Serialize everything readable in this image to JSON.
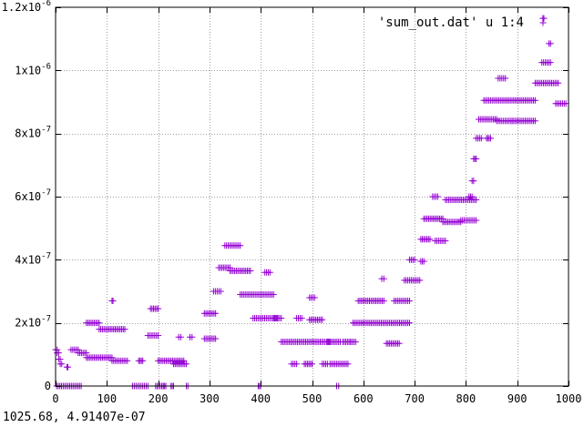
{
  "chart_data": {
    "type": "scatter",
    "legend_label": "'sum_out.dat' u 1:4",
    "legend_position": "top-right",
    "point_marker": "plus",
    "series_color": "#9400d3",
    "xlim": [
      0,
      1000
    ],
    "ylim": [
      0,
      1.2e-06
    ],
    "x_ticks": [
      {
        "value": 0,
        "label": "0"
      },
      {
        "value": 100,
        "label": "100"
      },
      {
        "value": 200,
        "label": "200"
      },
      {
        "value": 300,
        "label": "300"
      },
      {
        "value": 400,
        "label": "400"
      },
      {
        "value": 500,
        "label": "500"
      },
      {
        "value": 600,
        "label": "600"
      },
      {
        "value": 700,
        "label": "700"
      },
      {
        "value": 800,
        "label": "800"
      },
      {
        "value": 900,
        "label": "900"
      },
      {
        "value": 1000,
        "label": "1000"
      }
    ],
    "y_ticks": [
      {
        "value": 0,
        "mantissa": "0",
        "exp": ""
      },
      {
        "value": 2e-07,
        "mantissa": "2x10",
        "exp": "-7"
      },
      {
        "value": 4e-07,
        "mantissa": "4x10",
        "exp": "-7"
      },
      {
        "value": 6e-07,
        "mantissa": "6x10",
        "exp": "-7"
      },
      {
        "value": 8e-07,
        "mantissa": "8x10",
        "exp": "-7"
      },
      {
        "value": 1e-06,
        "mantissa": "1x10",
        "exp": "-6"
      },
      {
        "value": 1.2e-06,
        "mantissa": "1.2x10",
        "exp": "-6"
      }
    ],
    "clusters": [
      {
        "x": [
          0,
          3
        ],
        "y": 1.15e-07
      },
      {
        "x": [
          3,
          6
        ],
        "y": 1.05e-07
      },
      {
        "x": [
          6,
          9
        ],
        "y": 8.5e-08
      },
      {
        "x": [
          9,
          12
        ],
        "y": 7e-08
      },
      {
        "x": [
          2,
          50
        ],
        "y": 0
      },
      {
        "x": [
          22,
          24
        ],
        "y": 6e-08
      },
      {
        "x": [
          30,
          44
        ],
        "y": 1.15e-07
      },
      {
        "x": [
          44,
          60
        ],
        "y": 1.05e-07
      },
      {
        "x": [
          60,
          110
        ],
        "y": 9e-08
      },
      {
        "x": [
          110,
          140
        ],
        "y": 8e-08
      },
      {
        "x": [
          60,
          85
        ],
        "y": 2e-07
      },
      {
        "x": [
          85,
          135
        ],
        "y": 1.8e-07
      },
      {
        "x": [
          110,
          112
        ],
        "y": 2.7e-07
      },
      {
        "x": [
          150,
          180
        ],
        "y": 0
      },
      {
        "x": [
          162,
          170
        ],
        "y": 8e-08
      },
      {
        "x": [
          180,
          200
        ],
        "y": 1.6e-07
      },
      {
        "x": [
          185,
          200
        ],
        "y": 2.45e-07
      },
      {
        "x": [
          195,
          210
        ],
        "y": 0
      },
      {
        "x": [
          210,
          215
        ],
        "y": 0
      },
      {
        "x": [
          225,
          230
        ],
        "y": 0
      },
      {
        "x": [
          200,
          250
        ],
        "y": 8e-08
      },
      {
        "x": [
          230,
          255
        ],
        "y": 7e-08
      },
      {
        "x": [
          240,
          244
        ],
        "y": 1.55e-07
      },
      {
        "x": [
          255,
          258
        ],
        "y": 0
      },
      {
        "x": [
          262,
          266
        ],
        "y": 1.55e-07
      },
      {
        "x": [
          290,
          312
        ],
        "y": 2.3e-07
      },
      {
        "x": [
          290,
          312
        ],
        "y": 1.5e-07
      },
      {
        "x": [
          308,
          322
        ],
        "y": 3e-07
      },
      {
        "x": [
          318,
          340
        ],
        "y": 3.75e-07
      },
      {
        "x": [
          330,
          360
        ],
        "y": 4.45e-07
      },
      {
        "x": [
          340,
          380
        ],
        "y": 3.65e-07
      },
      {
        "x": [
          360,
          425
        ],
        "y": 2.9e-07
      },
      {
        "x": [
          385,
          440
        ],
        "y": 2.15e-07
      },
      {
        "x": [
          395,
          400
        ],
        "y": 0
      },
      {
        "x": [
          408,
          418
        ],
        "y": 3.6e-07
      },
      {
        "x": [
          425,
          432
        ],
        "y": 2.15e-07
      },
      {
        "x": [
          440,
          535
        ],
        "y": 1.4e-07
      },
      {
        "x": [
          460,
          470
        ],
        "y": 7e-08
      },
      {
        "x": [
          470,
          480
        ],
        "y": 2.15e-07
      },
      {
        "x": [
          485,
          500
        ],
        "y": 7e-08
      },
      {
        "x": [
          495,
          505
        ],
        "y": 2.8e-07
      },
      {
        "x": [
          495,
          520
        ],
        "y": 2.1e-07
      },
      {
        "x": [
          520,
          530
        ],
        "y": 7e-08
      },
      {
        "x": [
          535,
          570
        ],
        "y": 7e-08
      },
      {
        "x": [
          530,
          555
        ],
        "y": 1.4e-07
      },
      {
        "x": [
          548,
          552
        ],
        "y": 0
      },
      {
        "x": [
          560,
          575
        ],
        "y": 1.4e-07
      },
      {
        "x": [
          575,
          585
        ],
        "y": 1.4e-07
      },
      {
        "x": [
          580,
          690
        ],
        "y": 2e-07
      },
      {
        "x": [
          590,
          640
        ],
        "y": 2.7e-07
      },
      {
        "x": [
          636,
          640
        ],
        "y": 3.4e-07
      },
      {
        "x": [
          645,
          670
        ],
        "y": 1.35e-07
      },
      {
        "x": [
          660,
          690
        ],
        "y": 2.7e-07
      },
      {
        "x": [
          680,
          710
        ],
        "y": 3.35e-07
      },
      {
        "x": [
          690,
          700
        ],
        "y": 4e-07
      },
      {
        "x": [
          712,
          718
        ],
        "y": 3.95e-07
      },
      {
        "x": [
          712,
          730
        ],
        "y": 4.65e-07
      },
      {
        "x": [
          718,
          755
        ],
        "y": 5.3e-07
      },
      {
        "x": [
          735,
          745
        ],
        "y": 6e-07
      },
      {
        "x": [
          740,
          760
        ],
        "y": 4.6e-07
      },
      {
        "x": [
          755,
          790
        ],
        "y": 5.2e-07
      },
      {
        "x": [
          760,
          820
        ],
        "y": 5.9e-07
      },
      {
        "x": [
          790,
          820
        ],
        "y": 5.25e-07
      },
      {
        "x": [
          806,
          812
        ],
        "y": 6e-07
      },
      {
        "x": [
          812,
          815
        ],
        "y": 6.5e-07
      },
      {
        "x": [
          815,
          820
        ],
        "y": 7.2e-07
      },
      {
        "x": [
          820,
          830
        ],
        "y": 7.85e-07
      },
      {
        "x": [
          825,
          860
        ],
        "y": 8.45e-07
      },
      {
        "x": [
          840,
          848
        ],
        "y": 7.85e-07
      },
      {
        "x": [
          835,
          935
        ],
        "y": 9.05e-07
      },
      {
        "x": [
          860,
          890
        ],
        "y": 8.4e-07
      },
      {
        "x": [
          863,
          877
        ],
        "y": 9.75e-07
      },
      {
        "x": [
          890,
          935
        ],
        "y": 8.4e-07
      },
      {
        "x": [
          935,
          980
        ],
        "y": 9.6e-07
      },
      {
        "x": [
          948,
          965
        ],
        "y": 1.025e-06
      },
      {
        "x": [
          950,
          952
        ],
        "y": 1.165e-06
      },
      {
        "x": [
          962,
          965
        ],
        "y": 1.085e-06
      },
      {
        "x": [
          975,
          995
        ],
        "y": 8.95e-07
      }
    ]
  },
  "status": {
    "coordinates": "1025.68,  4.91407e-07"
  }
}
